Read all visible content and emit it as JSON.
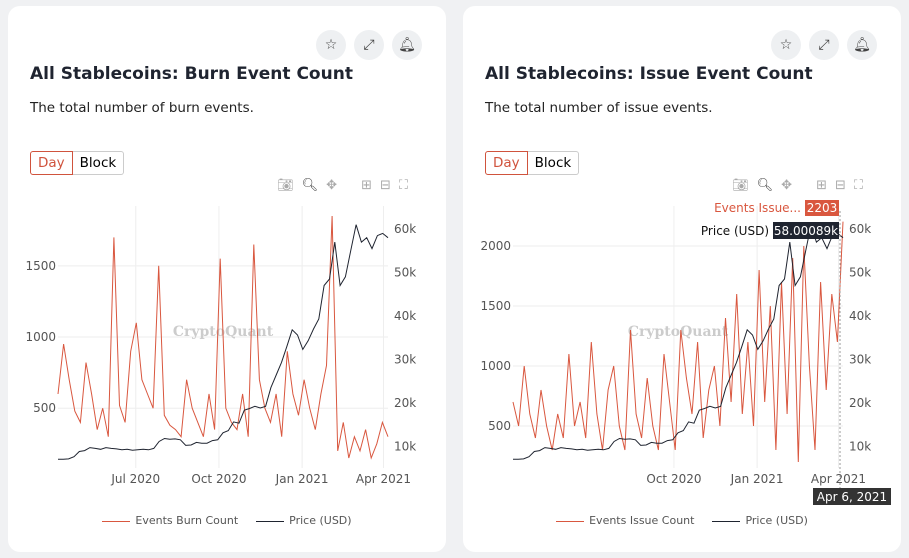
{
  "icons": {
    "star": "star-icon",
    "expand": "expand-icon",
    "bell": "bell-icon",
    "camera": "camera-icon",
    "zoom": "zoom-icon",
    "pan": "pan-icon",
    "plus": "zoom-in-icon",
    "minus": "zoom-out-icon",
    "autoscale": "autoscale-icon"
  },
  "colors": {
    "events": "#d9573f",
    "price": "#1f2430"
  },
  "cards": [
    {
      "title": "All Stablecoins: Burn Event Count",
      "description": "The total number of burn events.",
      "tabs": [
        "Day",
        "Block"
      ],
      "legend": [
        "Events Burn Count",
        "Price (USD)"
      ],
      "watermark": "CryptoQuant"
    },
    {
      "title": "All Stablecoins: Issue Event Count",
      "description": "The total number of issue events.",
      "tabs": [
        "Day",
        "Block"
      ],
      "legend": [
        "Events Issue Count",
        "Price (USD)"
      ],
      "watermark": "CryptoQuant",
      "hover": {
        "events_label": "Events Issue...",
        "events_value": "2203",
        "price_label": "Price (USD)",
        "price_value": "58.00089k",
        "date": "Apr 6, 2021"
      }
    }
  ],
  "chart_data": [
    {
      "type": "line",
      "x_range": [
        "2020-04-06",
        "2021-04-06"
      ],
      "xticks": [
        "Jul 2020",
        "Oct 2020",
        "Jan 2021",
        "Apr 2021"
      ],
      "y_left": {
        "ticks": [
          500,
          1000,
          1500
        ],
        "range": [
          80,
          1850
        ]
      },
      "y_right": {
        "ticks": [
          "10k",
          "20k",
          "30k",
          "40k",
          "50k",
          "60k"
        ],
        "range": [
          5000,
          63000
        ]
      },
      "series": [
        {
          "name": "Events Burn Count",
          "axis": "left",
          "values": [
            600,
            950,
            700,
            480,
            400,
            820,
            600,
            350,
            500,
            300,
            1700,
            520,
            400,
            900,
            1100,
            700,
            600,
            500,
            1500,
            450,
            380,
            350,
            300,
            700,
            500,
            400,
            300,
            600,
            350,
            1550,
            500,
            400,
            350,
            600,
            300,
            1650,
            700,
            500,
            400,
            600,
            300,
            900,
            600,
            450,
            700,
            500,
            350,
            600,
            800,
            1850,
            200,
            400,
            150,
            300,
            200,
            350,
            150,
            250,
            400,
            300
          ]
        },
        {
          "name": "Price (USD)",
          "axis": "right",
          "values": [
            7000,
            7000,
            7100,
            7600,
            8800,
            9000,
            9700,
            9500,
            9300,
            9700,
            9500,
            9400,
            9200,
            9300,
            9100,
            9200,
            9300,
            9200,
            9500,
            11100,
            11800,
            11600,
            11700,
            11500,
            10200,
            10300,
            10900,
            10700,
            10700,
            11300,
            11500,
            13100,
            13600,
            15600,
            15300,
            18300,
            18700,
            19200,
            18800,
            19200,
            23500,
            26400,
            29300,
            33000,
            36800,
            35600,
            32300,
            34300,
            37000,
            39300,
            47000,
            48500,
            57000,
            47000,
            49000,
            55000,
            61000,
            57000,
            58000,
            55500,
            58500,
            59000,
            58000
          ]
        }
      ]
    },
    {
      "type": "line",
      "x_range": [
        "2020-04-06",
        "2021-04-06"
      ],
      "xticks": [
        "Oct 2020",
        "Jan 2021",
        "Apr 2021"
      ],
      "y_left": {
        "ticks": [
          500,
          1000,
          1500,
          2000
        ],
        "range": [
          150,
          2250
        ]
      },
      "y_right": {
        "ticks": [
          "10k",
          "20k",
          "30k",
          "40k",
          "50k",
          "60k"
        ],
        "range": [
          5000,
          63000
        ]
      },
      "series": [
        {
          "name": "Events Issue Count",
          "axis": "left",
          "values": [
            700,
            500,
            1000,
            600,
            400,
            800,
            500,
            300,
            600,
            400,
            1100,
            500,
            700,
            400,
            1200,
            600,
            300,
            800,
            1000,
            500,
            300,
            1300,
            600,
            400,
            900,
            500,
            300,
            1100,
            700,
            300,
            1300,
            900,
            600,
            1200,
            400,
            800,
            1000,
            500,
            1400,
            700,
            1600,
            600,
            1200,
            500,
            1800,
            700,
            1500,
            300,
            1700,
            600,
            1900,
            200,
            2000,
            1000,
            300,
            1700,
            800,
            1600,
            1200,
            2203
          ]
        },
        {
          "name": "Price (USD)",
          "axis": "right",
          "values": [
            7000,
            7000,
            7100,
            7600,
            8800,
            9000,
            9700,
            9500,
            9300,
            9700,
            9500,
            9400,
            9200,
            9300,
            9100,
            9200,
            9300,
            9200,
            9500,
            11100,
            11800,
            11600,
            11700,
            11500,
            10200,
            10300,
            10900,
            10700,
            10700,
            11300,
            11500,
            13100,
            13600,
            15600,
            15300,
            18300,
            18700,
            19200,
            18800,
            19200,
            23500,
            26400,
            29300,
            33000,
            36800,
            35600,
            32300,
            34300,
            37000,
            39300,
            47000,
            48500,
            57000,
            47000,
            49000,
            55000,
            61000,
            57000,
            58000,
            55500,
            58500,
            59000,
            58000
          ]
        }
      ]
    }
  ]
}
